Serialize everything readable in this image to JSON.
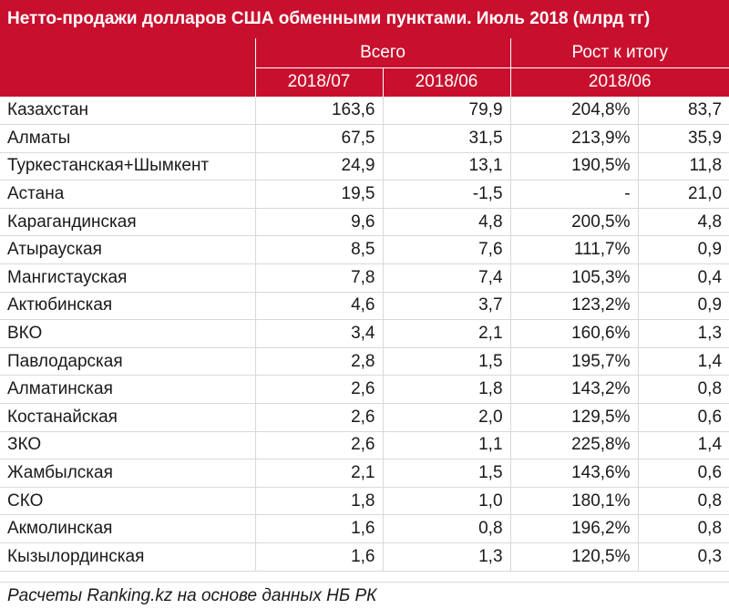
{
  "title": "Нетто-продажи долларов США обменными пунктами. Июль 2018 (млрд тг)",
  "header": {
    "group_total": "Всего",
    "group_growth": "Рост к итогу",
    "col_2018_07": "2018/07",
    "col_2018_06": "2018/06",
    "col_growth_period": "2018/06"
  },
  "rows": [
    {
      "region": "Казахстан",
      "v07": "163,6",
      "v06": "79,9",
      "growth": "204,8%",
      "delta": "83,7"
    },
    {
      "region": "Алматы",
      "v07": "67,5",
      "v06": "31,5",
      "growth": "213,9%",
      "delta": "35,9"
    },
    {
      "region": "Туркестанская+Шымкент",
      "v07": "24,9",
      "v06": "13,1",
      "growth": "190,5%",
      "delta": "11,8"
    },
    {
      "region": "Астана",
      "v07": "19,5",
      "v06": "-1,5",
      "growth": "-",
      "delta": "21,0"
    },
    {
      "region": "Карагандинская",
      "v07": "9,6",
      "v06": "4,8",
      "growth": "200,5%",
      "delta": "4,8"
    },
    {
      "region": "Атырауская",
      "v07": "8,5",
      "v06": "7,6",
      "growth": "111,7%",
      "delta": "0,9"
    },
    {
      "region": "Мангистауская",
      "v07": "7,8",
      "v06": "7,4",
      "growth": "105,3%",
      "delta": "0,4"
    },
    {
      "region": "Актюбинская",
      "v07": "4,6",
      "v06": "3,7",
      "growth": "123,2%",
      "delta": "0,9"
    },
    {
      "region": "ВКО",
      "v07": "3,4",
      "v06": "2,1",
      "growth": "160,6%",
      "delta": "1,3"
    },
    {
      "region": "Павлодарская",
      "v07": "2,8",
      "v06": "1,5",
      "growth": "195,7%",
      "delta": "1,4"
    },
    {
      "region": "Алматинская",
      "v07": "2,6",
      "v06": "1,8",
      "growth": "143,2%",
      "delta": "0,8"
    },
    {
      "region": "Костанайская",
      "v07": "2,6",
      "v06": "2,0",
      "growth": "129,5%",
      "delta": "0,6"
    },
    {
      "region": "ЗКО",
      "v07": "2,6",
      "v06": "1,1",
      "growth": "225,8%",
      "delta": "1,4"
    },
    {
      "region": "Жамбылская",
      "v07": "2,1",
      "v06": "1,5",
      "growth": "143,6%",
      "delta": "0,6"
    },
    {
      "region": "СКО",
      "v07": "1,8",
      "v06": "1,0",
      "growth": "180,1%",
      "delta": "0,8"
    },
    {
      "region": "Акмолинская",
      "v07": "1,6",
      "v06": "0,8",
      "growth": "196,2%",
      "delta": "0,8"
    },
    {
      "region": "Кызылординская",
      "v07": "1,6",
      "v06": "1,3",
      "growth": "120,5%",
      "delta": "0,3"
    }
  ],
  "footer": "Расчеты Ranking.kz на основе данных НБ РК",
  "colors": {
    "header_bg": "#c8102e",
    "header_text": "#ffffff",
    "grid": "#d9d9d9"
  }
}
